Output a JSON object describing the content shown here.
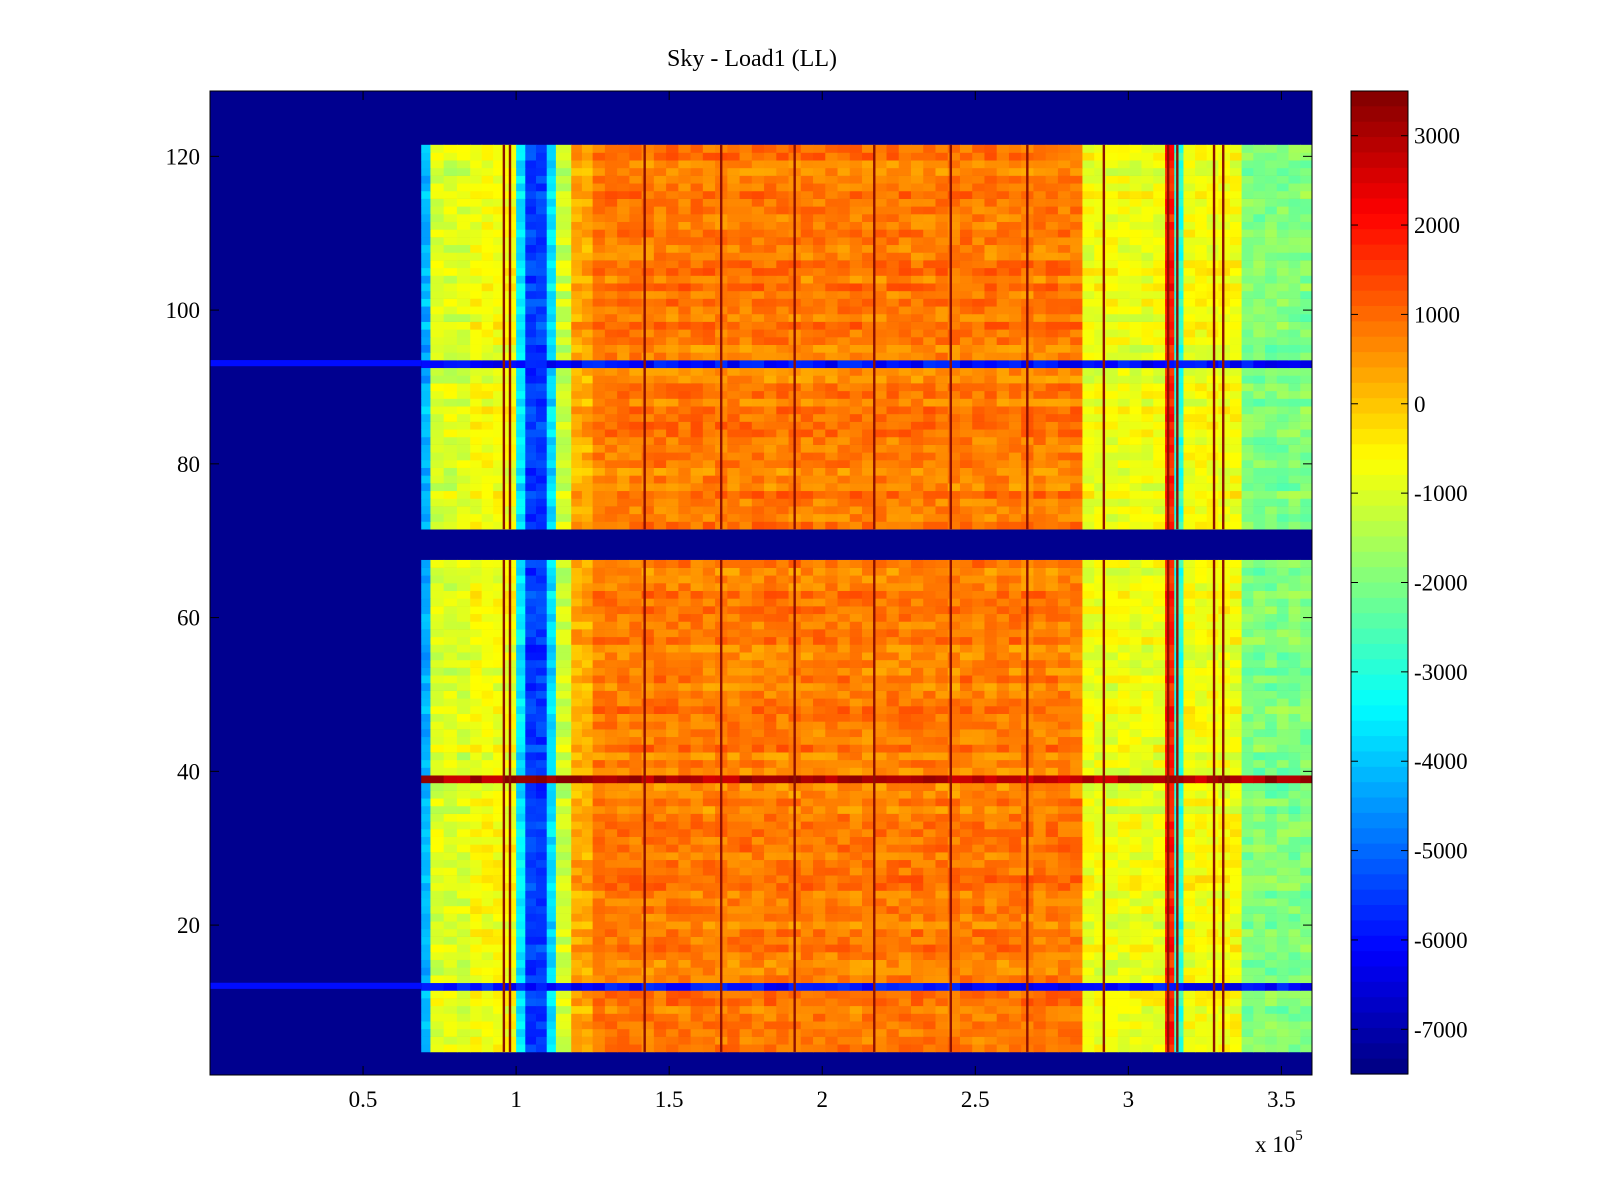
{
  "chart_data": {
    "type": "heatmap",
    "title": "Sky - Load1 (LL)",
    "xlabel": "",
    "ylabel": "",
    "x_multiplier_label": "x 10",
    "x_multiplier_exponent": "5",
    "xlim": [
      1,
      360000
    ],
    "ylim": [
      0.5,
      128.5
    ],
    "x_ticks": [
      50000,
      100000,
      150000,
      200000,
      250000,
      300000,
      350000
    ],
    "x_tick_labels": [
      "0.5",
      "1",
      "1.5",
      "2",
      "2.5",
      "3",
      "3.5"
    ],
    "y_ticks": [
      20,
      40,
      60,
      80,
      100,
      120
    ],
    "y_tick_labels": [
      "20",
      "40",
      "60",
      "80",
      "100",
      "120"
    ],
    "colorbar": {
      "colormap": "jet",
      "clim": [
        -7500,
        3500
      ],
      "ticks": [
        3000,
        2000,
        1000,
        0,
        -1000,
        -2000,
        -3000,
        -4000,
        -5000,
        -6000,
        -7000
      ],
      "tick_labels": [
        "3000",
        "2000",
        "1000",
        "0",
        "-1000",
        "-2000",
        "-3000",
        "-4000",
        "-5000",
        "-6000",
        "-7000"
      ]
    },
    "background_value": -7400,
    "active_rows": [
      [
        4,
        67
      ],
      [
        72,
        121
      ]
    ],
    "column_regions": [
      {
        "x": [
          1,
          69000
        ],
        "value": -7400
      },
      {
        "x": [
          69000,
          72000
        ],
        "value": -4200
      },
      {
        "x": [
          72000,
          85000
        ],
        "value": -1000
      },
      {
        "x": [
          85000,
          100000
        ],
        "value": -700
      },
      {
        "x": [
          100000,
          103000
        ],
        "value": -3600
      },
      {
        "x": [
          103000,
          110000
        ],
        "value": -5500
      },
      {
        "x": [
          110000,
          113000
        ],
        "value": -3700
      },
      {
        "x": [
          113000,
          118000
        ],
        "value": -1200
      },
      {
        "x": [
          118000,
          125000
        ],
        "value": 300
      },
      {
        "x": [
          125000,
          285000
        ],
        "value": 800
      },
      {
        "x": [
          285000,
          312000
        ],
        "value": -800
      },
      {
        "x": [
          312000,
          315000
        ],
        "value": 1800
      },
      {
        "x": [
          315000,
          318000
        ],
        "value": -3000
      },
      {
        "x": [
          318000,
          337000
        ],
        "value": -700
      },
      {
        "x": [
          337000,
          360000
        ],
        "value": -2000
      }
    ],
    "dark_stripes_x": [
      96000,
      98000,
      142000,
      167000,
      191000,
      217000,
      242000,
      267000,
      292000,
      313000,
      316000,
      328000,
      331000
    ],
    "row_features": [
      {
        "row": 39,
        "value": 3000,
        "note": "hot band across active region"
      },
      {
        "row": 12,
        "value": -6000,
        "note": "faint line in empty region"
      },
      {
        "row": 93,
        "value": -6000,
        "note": "faint line in empty region"
      }
    ]
  }
}
